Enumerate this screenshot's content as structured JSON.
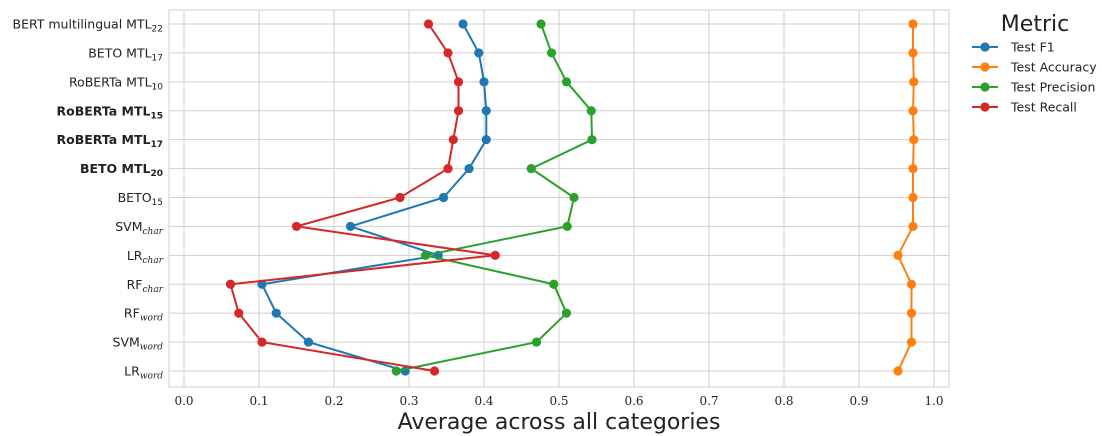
{
  "chart_data": {
    "type": "line",
    "orientation": "horizontal",
    "xlabel": "Average across all categories",
    "xlim": [
      -0.02,
      1.02
    ],
    "xticks": [
      "0.0",
      "0.1",
      "0.2",
      "0.3",
      "0.4",
      "0.5",
      "0.6",
      "0.7",
      "0.8",
      "0.9",
      "1.0"
    ],
    "grid": true,
    "legend_title": "Metric",
    "legend_position": "outside-right-top",
    "categories": [
      {
        "base": "BERT multilingual MTL",
        "sub": "22",
        "bold": false,
        "italic_sub": false
      },
      {
        "base": "BETO MTL",
        "sub": "17",
        "bold": false,
        "italic_sub": false
      },
      {
        "base": "RoBERTa MTL",
        "sub": "10",
        "bold": false,
        "italic_sub": false
      },
      {
        "base": "RoBERTa MTL",
        "sub": "15",
        "bold": true,
        "italic_sub": false
      },
      {
        "base": "RoBERTa MTL",
        "sub": "17",
        "bold": true,
        "italic_sub": false
      },
      {
        "base": "BETO MTL",
        "sub": "20",
        "bold": true,
        "italic_sub": false
      },
      {
        "base": "BETO",
        "sub": "15",
        "bold": false,
        "italic_sub": false
      },
      {
        "base": "SVM",
        "sub": "char",
        "bold": false,
        "italic_sub": true
      },
      {
        "base": "LR",
        "sub": "char",
        "bold": false,
        "italic_sub": true
      },
      {
        "base": "RF",
        "sub": "char",
        "bold": false,
        "italic_sub": true
      },
      {
        "base": "RF",
        "sub": "word",
        "bold": false,
        "italic_sub": true
      },
      {
        "base": "SVM",
        "sub": "word",
        "bold": false,
        "italic_sub": true
      },
      {
        "base": "LR",
        "sub": "word",
        "bold": false,
        "italic_sub": true
      }
    ],
    "series": [
      {
        "name": "Test F1",
        "color": "#1f77b4",
        "values": [
          0.372,
          0.393,
          0.4,
          0.403,
          0.403,
          0.38,
          0.346,
          0.222,
          0.339,
          0.104,
          0.123,
          0.166,
          0.295
        ]
      },
      {
        "name": "Test Accuracy",
        "color": "#ff7f0e",
        "values": [
          0.972,
          0.972,
          0.973,
          0.972,
          0.973,
          0.972,
          0.972,
          0.972,
          0.952,
          0.97,
          0.97,
          0.97,
          0.952
        ]
      },
      {
        "name": "Test Precision",
        "color": "#2ca02c",
        "values": [
          0.476,
          0.49,
          0.51,
          0.543,
          0.544,
          0.463,
          0.52,
          0.511,
          0.322,
          0.493,
          0.51,
          0.47,
          0.283
        ]
      },
      {
        "name": "Test Recall",
        "color": "#d62728",
        "values": [
          0.326,
          0.352,
          0.366,
          0.366,
          0.359,
          0.352,
          0.288,
          0.15,
          0.415,
          0.062,
          0.073,
          0.104,
          0.334
        ]
      }
    ]
  }
}
